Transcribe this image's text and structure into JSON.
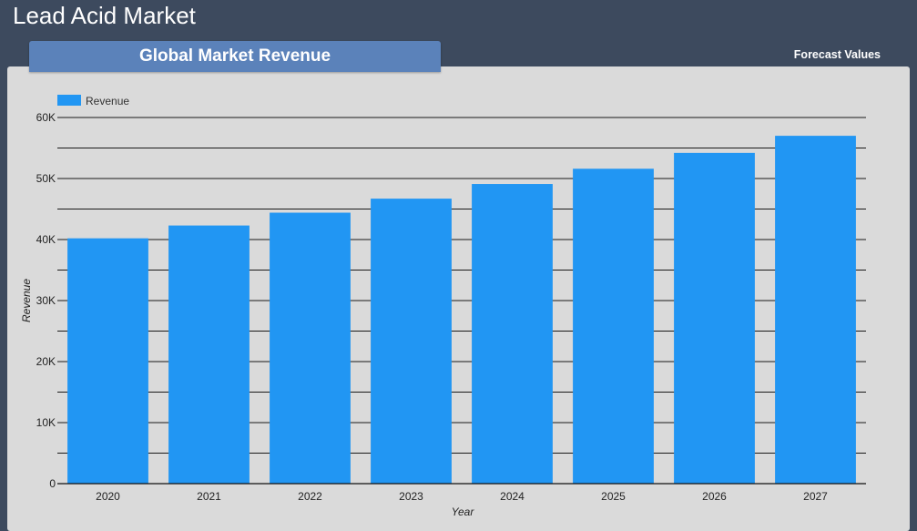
{
  "header": {
    "title": "Lead Acid Market"
  },
  "panel": {
    "tab_label": "Global Market Revenue",
    "forecast_label": "Forecast Values"
  },
  "chart_data": {
    "type": "bar",
    "categories": [
      "2020",
      "2021",
      "2022",
      "2023",
      "2024",
      "2025",
      "2026",
      "2027"
    ],
    "series": [
      {
        "name": "Revenue",
        "values": [
          40200,
          42300,
          44400,
          46700,
          49100,
          51600,
          54200,
          57000
        ]
      }
    ],
    "xlabel": "Year",
    "ylabel": "Revenue",
    "ylim": [
      0,
      60000
    ],
    "yticks": [
      {
        "value": 0,
        "label": "0"
      },
      {
        "value": 10000,
        "label": "10K"
      },
      {
        "value": 20000,
        "label": "20K"
      },
      {
        "value": 30000,
        "label": "30K"
      },
      {
        "value": 40000,
        "label": "40K"
      },
      {
        "value": 50000,
        "label": "50K"
      },
      {
        "value": 60000,
        "label": "60K"
      }
    ],
    "grid": true,
    "legend": "top-left",
    "bar_color": "#2196f3"
  }
}
